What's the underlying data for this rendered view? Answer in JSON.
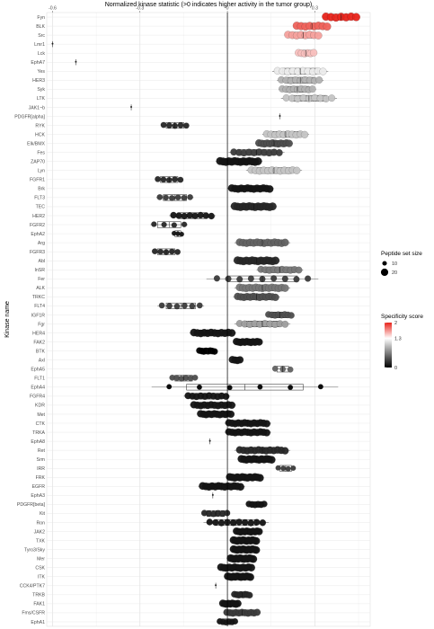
{
  "chart_data": {
    "type": "scatter",
    "xlabel": "Normalized kinase statistic (>0 indicates higher activity in the tumor group)",
    "ylabel": "Kinase name",
    "xlim": [
      -0.62,
      0.49
    ],
    "xticks": [
      -0.6,
      -0.3,
      0,
      0.3
    ],
    "xtick_labels": [
      "-0.6",
      "-0.3",
      "0",
      "0.3"
    ],
    "x_axis_position": "top",
    "grid": true,
    "legend_position": "right",
    "legend_size_title": "Peptide set size",
    "legend_size_items": [
      {
        "label": "10",
        "size": 10
      },
      {
        "label": "20",
        "size": 20
      }
    ],
    "legend_color_title": "Specificity score",
    "legend_color_ticks": [
      {
        "label": "2",
        "value": 2
      },
      {
        "label": "1.3",
        "value": 1.3
      },
      {
        "label": "0",
        "value": 0
      }
    ],
    "color_low": "#000000",
    "color_mid": "#ffffff",
    "color_high": "#e8241b",
    "kinases": [
      {
        "name": "Fyn",
        "center": 0.39,
        "spread": 0.04,
        "n": 7,
        "score": 2.0,
        "size": 16
      },
      {
        "name": "BLK",
        "center": 0.29,
        "spread": 0.04,
        "n": 8,
        "score": 1.8,
        "size": 16
      },
      {
        "name": "Src",
        "center": 0.26,
        "spread": 0.04,
        "n": 8,
        "score": 1.6,
        "size": 15
      },
      {
        "name": "Lmr1",
        "center": -0.6,
        "spread": 0.0,
        "n": 1,
        "score": 0.0,
        "size": 4
      },
      {
        "name": "Lck",
        "center": 0.27,
        "spread": 0.02,
        "n": 6,
        "score": 1.5,
        "size": 14
      },
      {
        "name": "EphA7",
        "center": -0.52,
        "spread": 0.0,
        "n": 1,
        "score": 0.0,
        "size": 4
      },
      {
        "name": "Yes",
        "center": 0.25,
        "spread": 0.06,
        "n": 10,
        "score": 1.2,
        "size": 14
      },
      {
        "name": "HER3",
        "center": 0.25,
        "spread": 0.05,
        "n": 9,
        "score": 0.9,
        "size": 13
      },
      {
        "name": "Syk",
        "center": 0.24,
        "spread": 0.04,
        "n": 9,
        "score": 0.9,
        "size": 13
      },
      {
        "name": "LTK",
        "center": 0.28,
        "spread": 0.06,
        "n": 9,
        "score": 1.0,
        "size": 13
      },
      {
        "name": "JAK1~b",
        "center": -0.33,
        "spread": 0.0,
        "n": 1,
        "score": 0.0,
        "size": 4
      },
      {
        "name": "PDGFR[alpha]",
        "center": 0.18,
        "spread": 0.0,
        "n": 1,
        "score": 0.0,
        "size": 4
      },
      {
        "name": "RYK",
        "center": -0.18,
        "spread": 0.03,
        "n": 5,
        "score": 0.2,
        "size": 10
      },
      {
        "name": "HCK",
        "center": 0.2,
        "spread": 0.05,
        "n": 10,
        "score": 1.0,
        "size": 14
      },
      {
        "name": "Elk/BMX",
        "center": 0.16,
        "spread": 0.04,
        "n": 12,
        "score": 0.4,
        "size": 14
      },
      {
        "name": "Fes",
        "center": 0.1,
        "spread": 0.06,
        "n": 10,
        "score": 0.3,
        "size": 13
      },
      {
        "name": "ZAP70",
        "center": 0.04,
        "spread": 0.05,
        "n": 14,
        "score": 0.1,
        "size": 16
      },
      {
        "name": "Lyn",
        "center": 0.16,
        "spread": 0.06,
        "n": 12,
        "score": 1.0,
        "size": 14
      },
      {
        "name": "FGFR1",
        "center": -0.2,
        "spread": 0.03,
        "n": 5,
        "score": 0.2,
        "size": 10
      },
      {
        "name": "Brk",
        "center": 0.08,
        "spread": 0.05,
        "n": 13,
        "score": 0.1,
        "size": 15
      },
      {
        "name": "FLT3",
        "center": -0.18,
        "spread": 0.04,
        "n": 6,
        "score": 0.3,
        "size": 10
      },
      {
        "name": "TEC",
        "center": 0.09,
        "spread": 0.05,
        "n": 14,
        "score": 0.2,
        "size": 16
      },
      {
        "name": "HER2",
        "center": -0.12,
        "spread": 0.05,
        "n": 8,
        "score": 0.1,
        "size": 12
      },
      {
        "name": "FGFR2",
        "center": -0.2,
        "spread": 0.04,
        "n": 4,
        "score": 0.2,
        "size": 9
      },
      {
        "name": "EphA2",
        "center": -0.17,
        "spread": 0.01,
        "n": 3,
        "score": 0.1,
        "size": 7
      },
      {
        "name": "Arg",
        "center": 0.12,
        "spread": 0.06,
        "n": 14,
        "score": 0.5,
        "size": 15
      },
      {
        "name": "FGFR3",
        "center": -0.21,
        "spread": 0.03,
        "n": 5,
        "score": 0.2,
        "size": 10
      },
      {
        "name": "Abl",
        "center": 0.1,
        "spread": 0.05,
        "n": 14,
        "score": 0.2,
        "size": 16
      },
      {
        "name": "InSR",
        "center": 0.18,
        "spread": 0.05,
        "n": 10,
        "score": 0.6,
        "size": 13
      },
      {
        "name": "Fer",
        "center": 0.12,
        "spread": 0.12,
        "n": 9,
        "score": 0.3,
        "size": 11
      },
      {
        "name": "ALK",
        "center": 0.12,
        "spread": 0.06,
        "n": 15,
        "score": 0.6,
        "size": 15
      },
      {
        "name": "TRKC",
        "center": 0.1,
        "spread": 0.05,
        "n": 13,
        "score": 0.4,
        "size": 14
      },
      {
        "name": "FLT4",
        "center": -0.16,
        "spread": 0.05,
        "n": 6,
        "score": 0.3,
        "size": 10
      },
      {
        "name": "IGF1R",
        "center": 0.18,
        "spread": 0.03,
        "n": 8,
        "score": 0.4,
        "size": 12
      },
      {
        "name": "Fgr",
        "center": 0.12,
        "spread": 0.06,
        "n": 10,
        "score": 0.8,
        "size": 13
      },
      {
        "name": "HER4",
        "center": -0.05,
        "spread": 0.05,
        "n": 12,
        "score": 0.1,
        "size": 15
      },
      {
        "name": "FAK2",
        "center": 0.07,
        "spread": 0.03,
        "n": 12,
        "score": 0.1,
        "size": 14
      },
      {
        "name": "BTK",
        "center": -0.07,
        "spread": 0.02,
        "n": 8,
        "score": 0.0,
        "size": 12
      },
      {
        "name": "Axl",
        "center": 0.03,
        "spread": 0.01,
        "n": 4,
        "score": 0.1,
        "size": 14
      },
      {
        "name": "EphA5",
        "center": 0.19,
        "spread": 0.02,
        "n": 3,
        "score": 0.5,
        "size": 10
      },
      {
        "name": "FLT1",
        "center": -0.15,
        "spread": 0.03,
        "n": 6,
        "score": 0.4,
        "size": 10
      },
      {
        "name": "EphA4",
        "center": 0.06,
        "spread": 0.2,
        "n": 6,
        "score": 0.0,
        "size": 8
      },
      {
        "name": "FGFR4",
        "center": -0.07,
        "spread": 0.05,
        "n": 10,
        "score": 0.1,
        "size": 13
      },
      {
        "name": "KDR",
        "center": -0.05,
        "spread": 0.05,
        "n": 12,
        "score": 0.1,
        "size": 14
      },
      {
        "name": "Met",
        "center": -0.04,
        "spread": 0.04,
        "n": 12,
        "score": 0.1,
        "size": 14
      },
      {
        "name": "CTK",
        "center": 0.07,
        "spread": 0.05,
        "n": 13,
        "score": 0.1,
        "size": 14
      },
      {
        "name": "TRKA",
        "center": 0.07,
        "spread": 0.05,
        "n": 13,
        "score": 0.1,
        "size": 14
      },
      {
        "name": "EphA8",
        "center": -0.06,
        "spread": 0.0,
        "n": 1,
        "score": 0.0,
        "size": 4
      },
      {
        "name": "Ret",
        "center": 0.12,
        "spread": 0.06,
        "n": 13,
        "score": 0.2,
        "size": 14
      },
      {
        "name": "Srm",
        "center": 0.1,
        "spread": 0.04,
        "n": 13,
        "score": 0.1,
        "size": 15
      },
      {
        "name": "IRR",
        "center": 0.2,
        "spread": 0.02,
        "n": 4,
        "score": 0.3,
        "size": 8
      },
      {
        "name": "FRK",
        "center": 0.06,
        "spread": 0.04,
        "n": 13,
        "score": 0.1,
        "size": 15
      },
      {
        "name": "EGFR",
        "center": -0.02,
        "spread": 0.05,
        "n": 13,
        "score": 0.1,
        "size": 15
      },
      {
        "name": "EphA3",
        "center": -0.05,
        "spread": 0.0,
        "n": 1,
        "score": 0.0,
        "size": 4
      },
      {
        "name": "PDGFR[beta]",
        "center": 0.1,
        "spread": 0.02,
        "n": 6,
        "score": 0.1,
        "size": 12
      },
      {
        "name": "Kit",
        "center": -0.04,
        "spread": 0.03,
        "n": 6,
        "score": 0.2,
        "size": 11
      },
      {
        "name": "Ron",
        "center": 0.03,
        "spread": 0.07,
        "n": 10,
        "score": 0.1,
        "size": 12
      },
      {
        "name": "JAK2",
        "center": 0.07,
        "spread": 0.03,
        "n": 12,
        "score": 0.1,
        "size": 14
      },
      {
        "name": "TXK",
        "center": 0.06,
        "spread": 0.03,
        "n": 13,
        "score": 0.1,
        "size": 15
      },
      {
        "name": "Tyro3/Sky",
        "center": 0.06,
        "spread": 0.03,
        "n": 13,
        "score": 0.1,
        "size": 15
      },
      {
        "name": "Mer",
        "center": 0.05,
        "spread": 0.03,
        "n": 13,
        "score": 0.1,
        "size": 15
      },
      {
        "name": "CSK",
        "center": 0.03,
        "spread": 0.04,
        "n": 12,
        "score": 0.1,
        "size": 15
      },
      {
        "name": "ITK",
        "center": 0.04,
        "spread": 0.03,
        "n": 13,
        "score": 0.1,
        "size": 15
      },
      {
        "name": "CCK4/PTK7",
        "center": -0.04,
        "spread": 0.0,
        "n": 1,
        "score": 0.0,
        "size": 4
      },
      {
        "name": "TRKB",
        "center": 0.05,
        "spread": 0.02,
        "n": 8,
        "score": 0.2,
        "size": 12
      },
      {
        "name": "FAK1",
        "center": 0.01,
        "spread": 0.02,
        "n": 9,
        "score": 0.1,
        "size": 14
      },
      {
        "name": "Fms/CSFR",
        "center": 0.05,
        "spread": 0.04,
        "n": 11,
        "score": 0.3,
        "size": 13
      },
      {
        "name": "EphA1",
        "center": 0.0,
        "spread": 0.02,
        "n": 6,
        "score": 0.1,
        "size": 11
      }
    ]
  }
}
